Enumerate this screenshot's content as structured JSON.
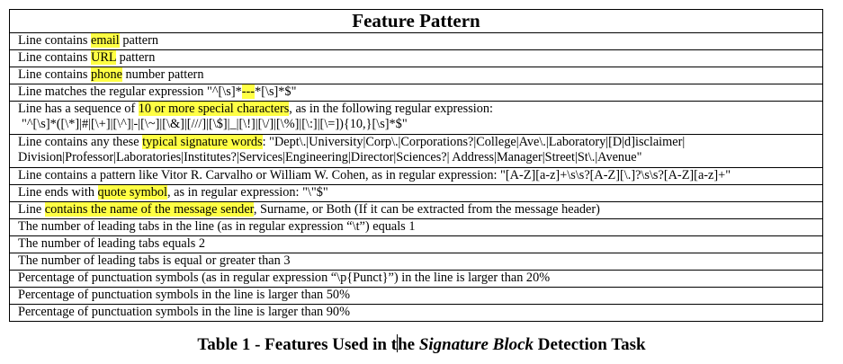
{
  "table": {
    "header": "Feature  Pattern",
    "rows": [
      {
        "a": "Line contains ",
        "b": "email",
        "c": " pattern"
      },
      {
        "a": "Line contains ",
        "b": "URL",
        "c": " pattern"
      },
      {
        "a": "Line contains ",
        "b": "phone",
        "c": " number pattern"
      },
      {
        "a": "Line matches the regular expression \"^[\\s]*",
        "b": "---",
        "c": "*[\\s]*$\""
      },
      {
        "a": "Line has a sequence of ",
        "b": "10 or more special characters",
        "c": ", as in the following regular expression:",
        "d": "\"^[\\s]*([\\*]|#|[\\+]|[\\^]|-|[\\~]|[\\&]|[///]|[\\$]|_|[\\!]|[\\/]|[\\%]|[\\:]|[\\=]){10,}[\\s]*$\""
      },
      {
        "a": "Line contains any these ",
        "b": "typical signature words",
        "c": ": \"Dept\\.|University|Corp\\.|Corporations?|College|Ave\\.|Laboratory|[D|d]isclaimer|",
        "d": "Division|Professor|Laboratories|Institutes?|Services|Engineering|Director|Sciences?| Address|Manager|Street|St\\.|Avenue\""
      },
      {
        "a": "Line contains a pattern like Vitor R. Carvalho or William W. Cohen, as in regular expression: \"[A-Z][a-z]+\\s\\s?[A-Z][\\.]?\\s\\s?[A-Z][a-z]+\""
      },
      {
        "a": "Line ends with ",
        "b": "quote symbol",
        "c": ", as in regular expression: \"\\\"$\""
      },
      {
        "a": "Line ",
        "b": "contains the name of the message sender",
        "c": ", Surname, or Both (If it can be extracted from the message header)"
      },
      {
        "a": "The number of leading tabs in the line (as in regular expression “\\t”)  equals 1"
      },
      {
        "a": "The number of leading tabs equals 2"
      },
      {
        "a": "The number of leading tabs is equal or greater than 3"
      },
      {
        "a": "Percentage of punctuation symbols (as in regular expression “\\p{Punct}”) in the line is larger than 20%"
      },
      {
        "a": "Percentage of punctuation symbols in the line is larger than 50%"
      },
      {
        "a": "Percentage of punctuation symbols in the line is larger than 90%"
      }
    ]
  },
  "caption": {
    "pre": "Table 1 - Features Used in t",
    "mid": "he ",
    "italic": "Signature Block",
    "post": " Detection Task"
  },
  "highlight_color": "#ffff44"
}
